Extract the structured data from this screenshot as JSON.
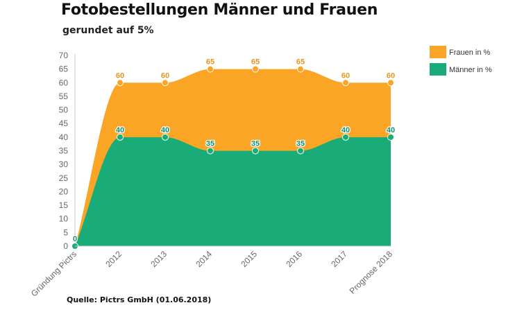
{
  "header": {
    "title": "Fotobestellungen Männer und Frauen",
    "subtitle": "gerundet auf 5%"
  },
  "footer": {
    "source": "Quelle: Pictrs GmbH (01.06.2018)"
  },
  "chart_data": {
    "type": "area",
    "stacked": false,
    "categories": [
      "Gründung Pictrs",
      "2012",
      "2013",
      "2014",
      "2015",
      "2016",
      "2017",
      "Prognose 2018"
    ],
    "series": [
      {
        "name": "Frauen in %",
        "color": "#FBA526",
        "values": [
          0,
          60,
          60,
          65,
          65,
          65,
          60,
          60
        ]
      },
      {
        "name": "Männer in %",
        "color": "#19AB78",
        "values": [
          0,
          40,
          40,
          35,
          35,
          35,
          40,
          40
        ]
      }
    ],
    "yticks": [
      0,
      5,
      10,
      15,
      20,
      25,
      30,
      35,
      40,
      45,
      50,
      55,
      60,
      65,
      70
    ],
    "ylim": [
      0,
      70
    ],
    "grid": false,
    "legend": "top-right",
    "data_label_colors": {
      "Frauen in %": "#E8961A",
      "Männer in %": "#14946A"
    }
  }
}
